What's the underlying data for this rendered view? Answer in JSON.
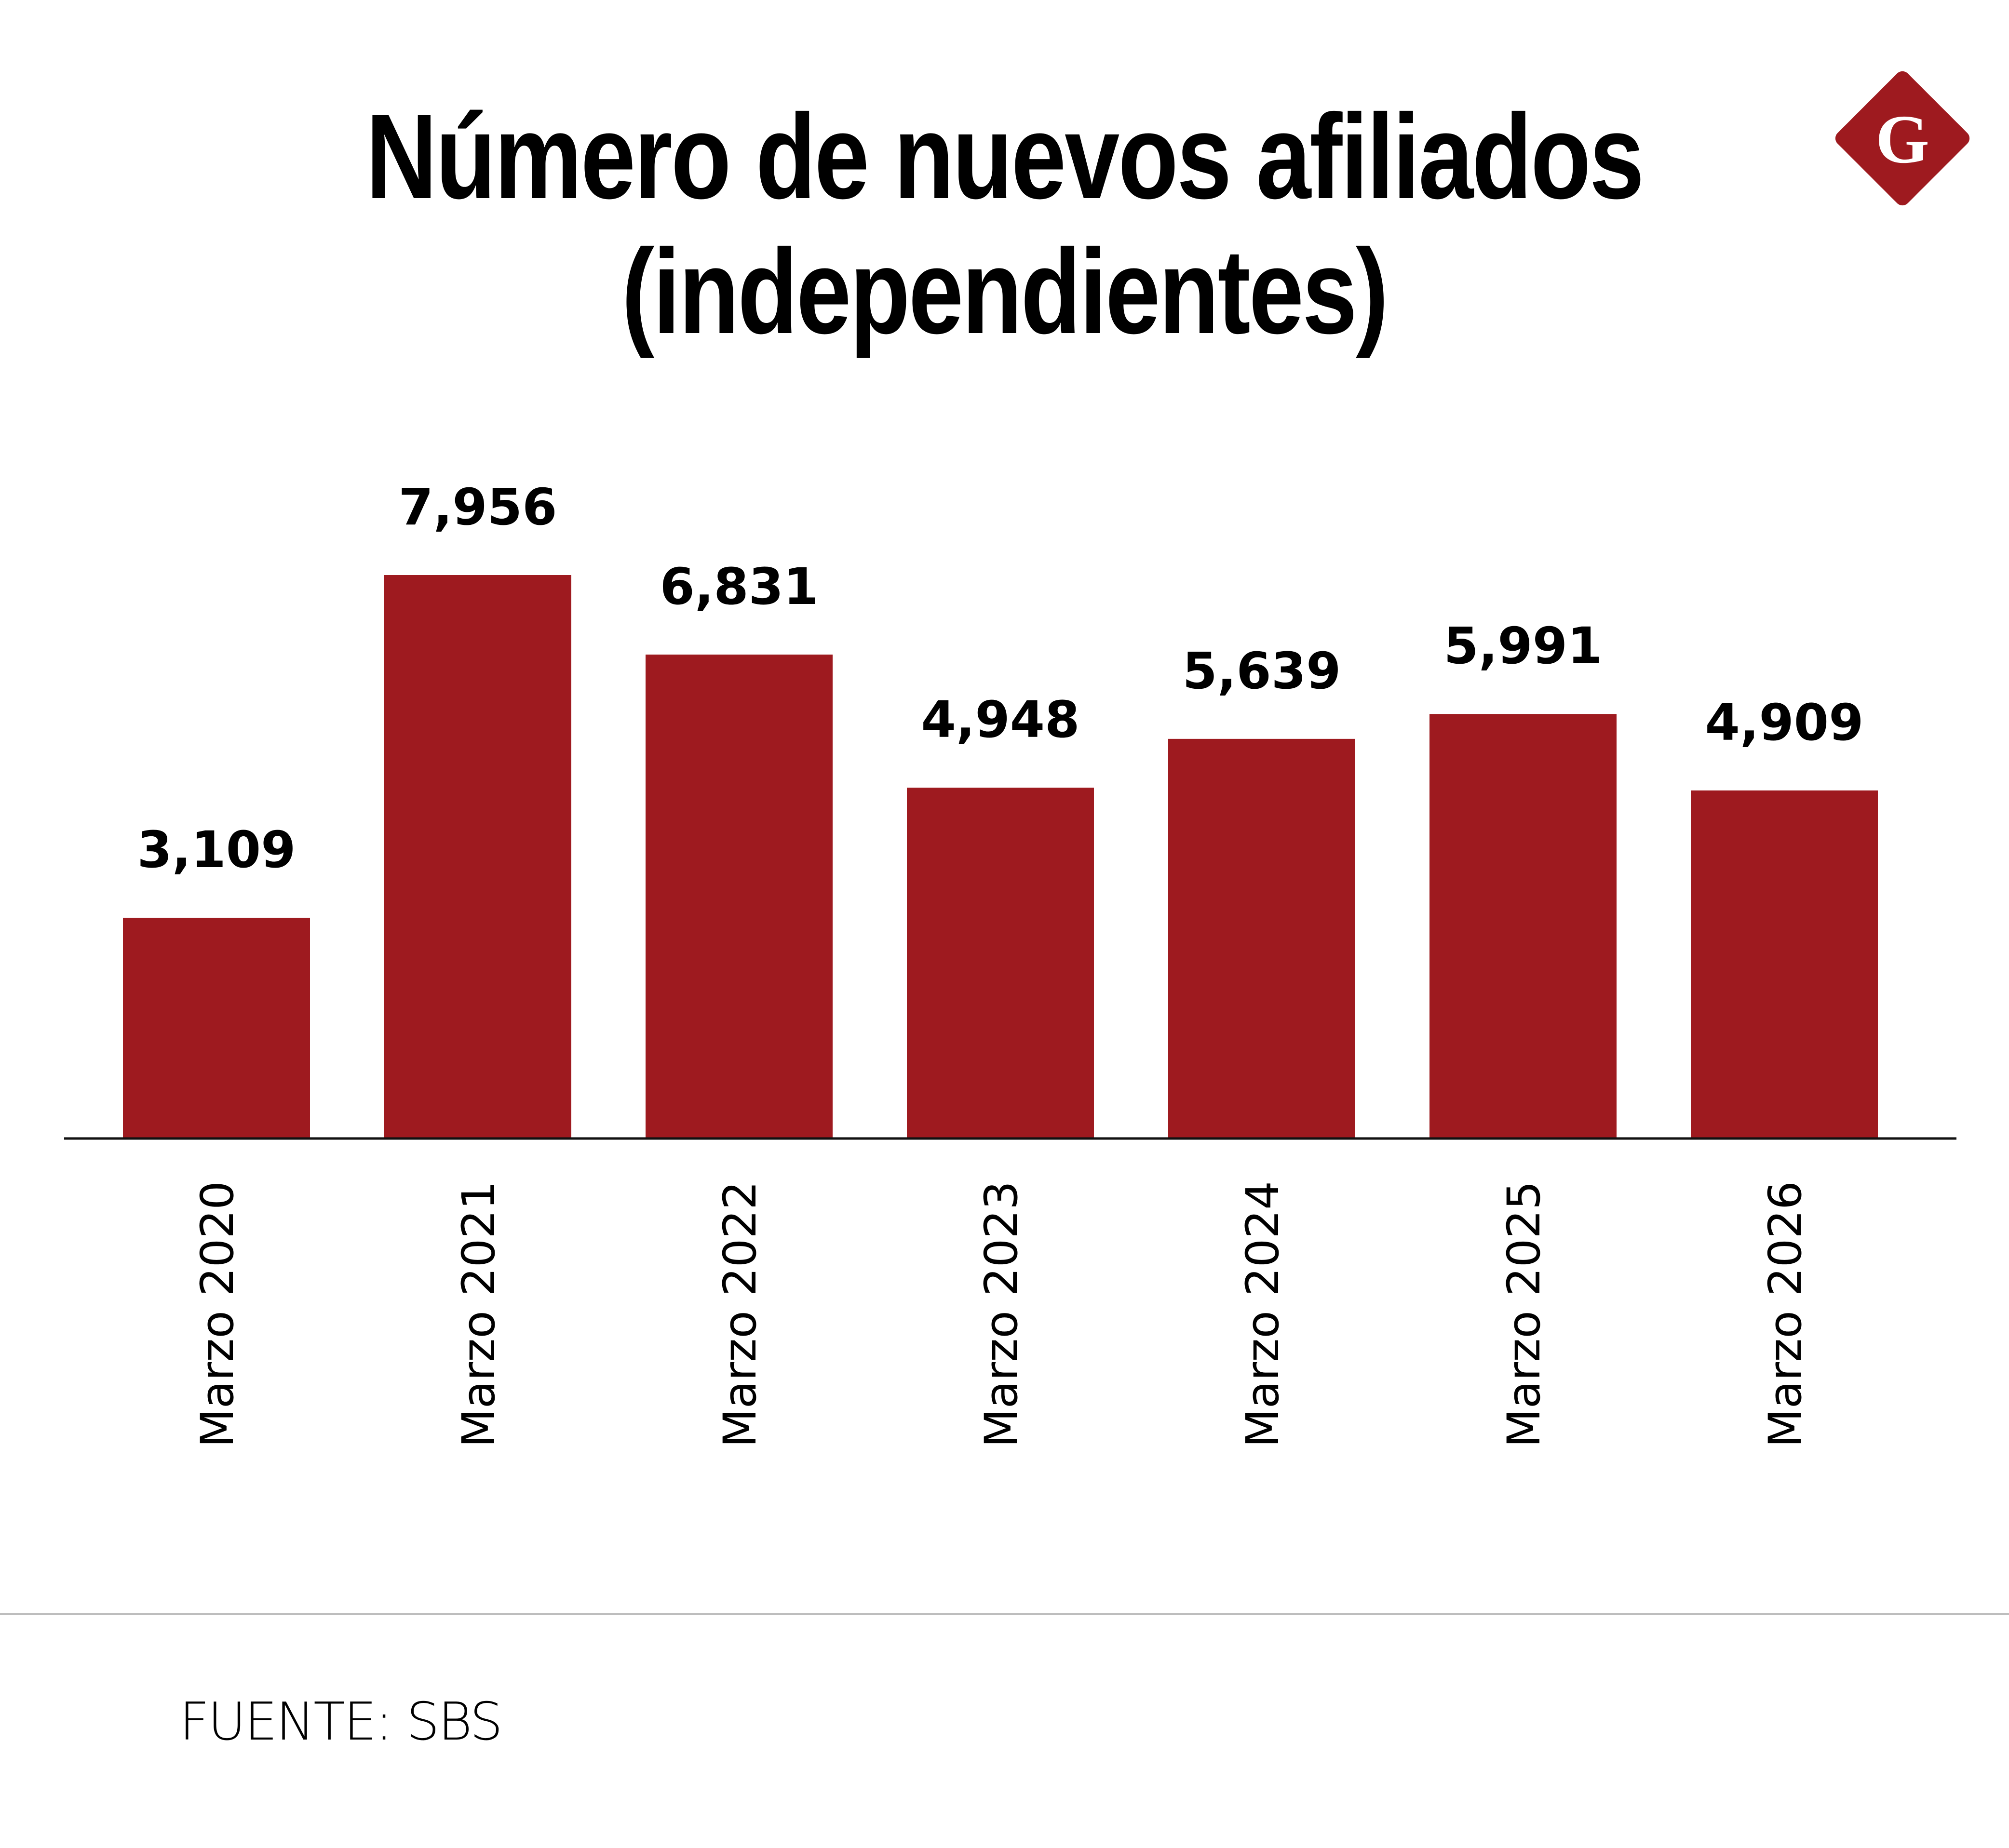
{
  "chart_data": {
    "type": "bar",
    "title": "Número de nuevos afiliados (independientes)",
    "title_lines": [
      "Número de nuevos afiliados",
      "(independientes)"
    ],
    "categories": [
      "Marzo 2020",
      "Marzo 2021",
      "Marzo 2022",
      "Marzo 2023",
      "Marzo 2024",
      "Marzo 2025",
      "Marzo 2026"
    ],
    "values": [
      3109,
      7956,
      6831,
      4948,
      5639,
      5991,
      4909
    ],
    "data_labels": [
      "3,109",
      "7,956",
      "6,831",
      "4,948",
      "5,639",
      "5,991",
      "4,909"
    ],
    "xlabel": "",
    "ylabel": "",
    "ylim": [
      0,
      8000
    ],
    "grid": false,
    "bar_color": "#9E1A1F"
  },
  "source": "FUENTE: SBS",
  "logo": {
    "letter": "G",
    "color": "#9E1A1F"
  }
}
